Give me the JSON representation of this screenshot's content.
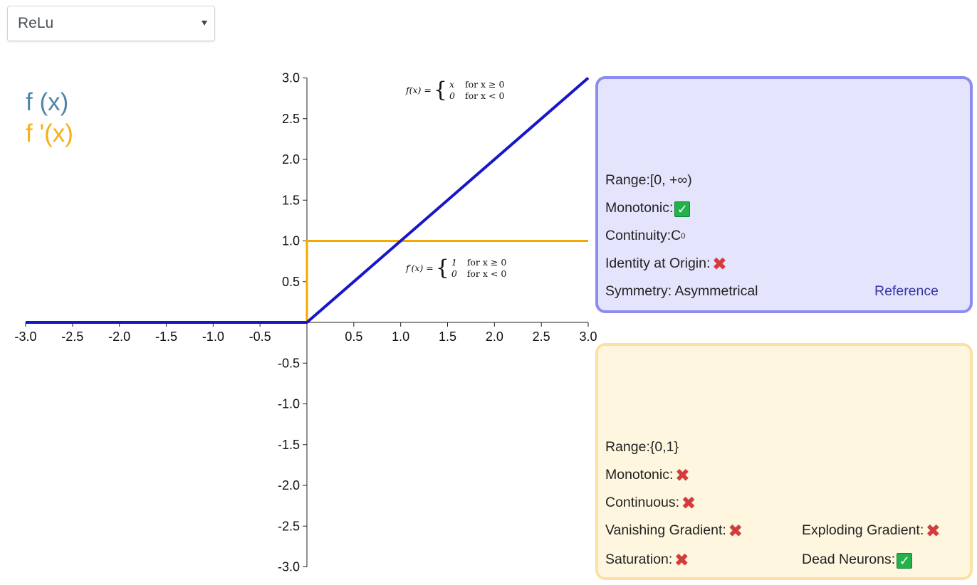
{
  "selector": {
    "value": "ReLu"
  },
  "legend": {
    "f": "f (x)",
    "df": "f '(x)"
  },
  "colors": {
    "f_line": "#1717c8",
    "df_line": "#f5a800",
    "f_label": "#4f86a8",
    "df_label": "#f5b012",
    "f_panel_border": "#8c8cf0",
    "df_panel_border": "#fbe2a2"
  },
  "formulas": {
    "f": {
      "lhs": "f(x) =",
      "rows": [
        [
          "x",
          "for x ≥ 0"
        ],
        [
          "0",
          "for x < 0"
        ]
      ]
    },
    "df": {
      "lhs": "f′(x) =",
      "rows": [
        [
          "1",
          "for x ≥ 0"
        ],
        [
          "0",
          "for x < 0"
        ]
      ]
    }
  },
  "chart_data": {
    "type": "line",
    "x_ticks": [
      "-3.0",
      "-2.5",
      "-2.0",
      "-1.5",
      "-1.0",
      "-0.5",
      "0.5",
      "1.0",
      "1.5",
      "2.0",
      "2.5",
      "3.0"
    ],
    "y_ticks": [
      "3.0",
      "2.5",
      "2.0",
      "1.5",
      "1.0",
      "0.5",
      "-0.5",
      "-1.0",
      "-1.5",
      "-2.0",
      "-2.5",
      "-3.0"
    ],
    "xlim": [
      -3,
      3
    ],
    "ylim": [
      -3,
      3
    ],
    "series": [
      {
        "name": "f (x)",
        "x": [
          -3,
          0,
          3
        ],
        "y": [
          0,
          0,
          3
        ]
      },
      {
        "name": "f '(x)",
        "x": [
          -3,
          0,
          0,
          3
        ],
        "y": [
          0,
          0,
          1,
          1
        ]
      }
    ]
  },
  "f_panel": {
    "range_label": "Range:",
    "range_value": "[0, +∞)",
    "monotonic_label": "Monotonic:",
    "monotonic_icon": "check-icon",
    "continuity_label": "Continuity:",
    "continuity_value": "C",
    "continuity_sup": "0",
    "identity_label": "Identity at Origin:",
    "identity_icon": "cross-icon",
    "symmetry_label": "Symmetry: Asymmetrical",
    "reference": "Reference"
  },
  "df_panel": {
    "range_label": "Range:",
    "range_value": "{0,1}",
    "monotonic_label": "Monotonic:",
    "continuous_label": "Continuous:",
    "vanishing_label": "Vanishing Gradient:",
    "exploding_label": "Exploding Gradient:",
    "saturation_label": "Saturation:",
    "dead_label": "Dead Neurons:",
    "check_glyph": "✓",
    "cross_glyph": "✖"
  }
}
